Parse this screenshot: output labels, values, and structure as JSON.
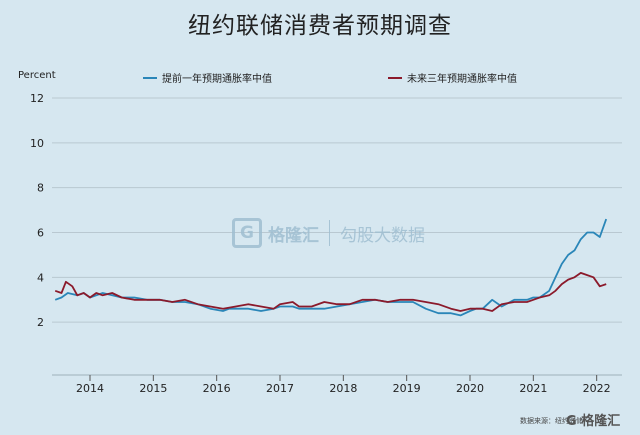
{
  "chart_data": {
    "type": "line",
    "title": "纽约联储消费者预期调查",
    "ylabel": "Percent",
    "xlabel": "",
    "ylim": [
      0,
      12
    ],
    "yticks": [
      2,
      4,
      6,
      8,
      10,
      12
    ],
    "xlim": [
      2013.4,
      2022.4
    ],
    "xticks": [
      "2014",
      "2015",
      "2016",
      "2017",
      "2018",
      "2019",
      "2020",
      "2021",
      "2022"
    ],
    "grid": "horizontal",
    "legend_position": "top",
    "series": [
      {
        "name": "提前一年预期通胀率中值",
        "color": "#2a86b8",
        "x": [
          2013.45,
          2013.55,
          2013.65,
          2013.8,
          2013.9,
          2014.0,
          2014.1,
          2014.2,
          2014.35,
          2014.5,
          2014.7,
          2014.9,
          2015.1,
          2015.3,
          2015.5,
          2015.7,
          2015.9,
          2016.1,
          2016.2,
          2016.3,
          2016.5,
          2016.7,
          2016.9,
          2017.0,
          2017.2,
          2017.3,
          2017.5,
          2017.7,
          2017.9,
          2018.1,
          2018.3,
          2018.5,
          2018.7,
          2018.9,
          2019.1,
          2019.3,
          2019.5,
          2019.7,
          2019.85,
          2020.0,
          2020.1,
          2020.2,
          2020.35,
          2020.5,
          2020.7,
          2020.9,
          2021.0,
          2021.1,
          2021.25,
          2021.35,
          2021.45,
          2021.55,
          2021.65,
          2021.75,
          2021.85,
          2021.95,
          2022.05,
          2022.15
        ],
        "values": [
          3.0,
          3.1,
          3.3,
          3.2,
          3.3,
          3.1,
          3.2,
          3.3,
          3.2,
          3.1,
          3.1,
          3.0,
          3.0,
          2.9,
          2.9,
          2.8,
          2.6,
          2.5,
          2.6,
          2.6,
          2.6,
          2.5,
          2.6,
          2.7,
          2.7,
          2.6,
          2.6,
          2.6,
          2.7,
          2.8,
          2.9,
          3.0,
          2.9,
          2.9,
          2.9,
          2.6,
          2.4,
          2.4,
          2.3,
          2.5,
          2.6,
          2.6,
          3.0,
          2.7,
          3.0,
          3.0,
          3.1,
          3.1,
          3.4,
          4.0,
          4.6,
          5.0,
          5.2,
          5.7,
          6.0,
          6.0,
          5.8,
          6.6
        ]
      },
      {
        "name": "未来三年预期通胀率中值",
        "color": "#8b1a2b",
        "x": [
          2013.45,
          2013.55,
          2013.62,
          2013.72,
          2013.8,
          2013.9,
          2014.0,
          2014.1,
          2014.2,
          2014.35,
          2014.5,
          2014.7,
          2014.9,
          2015.1,
          2015.3,
          2015.5,
          2015.7,
          2015.9,
          2016.1,
          2016.3,
          2016.5,
          2016.7,
          2016.9,
          2017.0,
          2017.2,
          2017.3,
          2017.5,
          2017.7,
          2017.9,
          2018.1,
          2018.3,
          2018.5,
          2018.7,
          2018.9,
          2019.1,
          2019.3,
          2019.5,
          2019.7,
          2019.85,
          2020.0,
          2020.1,
          2020.2,
          2020.35,
          2020.5,
          2020.7,
          2020.9,
          2021.0,
          2021.1,
          2021.25,
          2021.35,
          2021.45,
          2021.55,
          2021.65,
          2021.75,
          2021.85,
          2021.95,
          2022.05,
          2022.15
        ],
        "values": [
          3.4,
          3.3,
          3.8,
          3.6,
          3.2,
          3.3,
          3.1,
          3.3,
          3.2,
          3.3,
          3.1,
          3.0,
          3.0,
          3.0,
          2.9,
          3.0,
          2.8,
          2.7,
          2.6,
          2.7,
          2.8,
          2.7,
          2.6,
          2.8,
          2.9,
          2.7,
          2.7,
          2.9,
          2.8,
          2.8,
          3.0,
          3.0,
          2.9,
          3.0,
          3.0,
          2.9,
          2.8,
          2.6,
          2.5,
          2.6,
          2.6,
          2.6,
          2.5,
          2.8,
          2.9,
          2.9,
          3.0,
          3.1,
          3.2,
          3.4,
          3.7,
          3.9,
          4.0,
          4.2,
          4.1,
          4.0,
          3.6,
          3.7
        ]
      }
    ]
  },
  "watermark": {
    "logo_letter": "G",
    "name": "格隆汇",
    "site": "勾股大数据"
  },
  "footer": {
    "source": "数据来源：纽约联储",
    "badge": "G 格隆汇"
  }
}
